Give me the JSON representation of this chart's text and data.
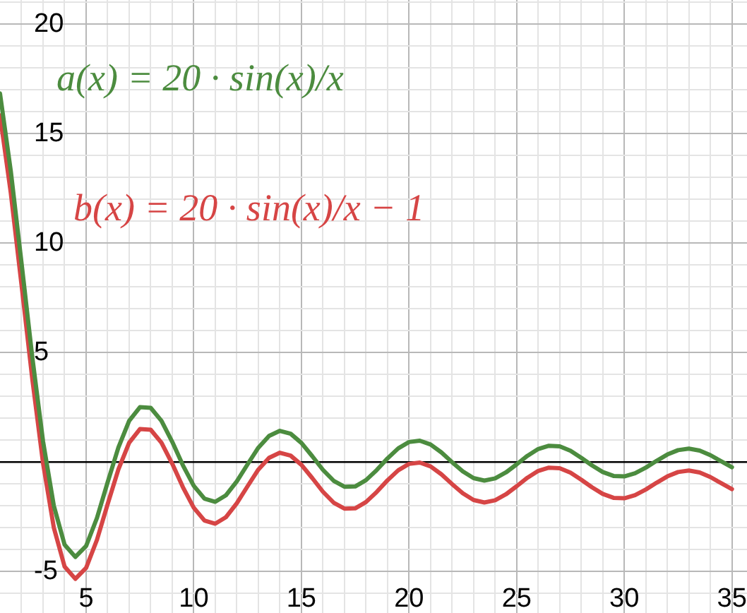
{
  "chart_data": {
    "type": "line",
    "x": [
      1,
      1.5,
      2,
      2.5,
      3,
      3.5,
      4,
      4.5,
      5,
      5.5,
      6,
      6.5,
      7,
      7.5,
      8,
      8.5,
      9,
      9.5,
      10,
      10.5,
      11,
      11.5,
      12,
      12.5,
      13,
      13.5,
      14,
      14.5,
      15,
      15.5,
      16,
      16.5,
      17,
      17.5,
      18,
      18.5,
      19,
      19.5,
      20,
      20.5,
      21,
      21.5,
      22,
      22.5,
      23,
      23.5,
      24,
      24.5,
      25,
      25.5,
      26,
      26.5,
      27,
      27.5,
      28,
      28.5,
      29,
      29.5,
      30,
      30.5,
      31,
      31.5,
      32,
      32.5,
      33,
      33.5,
      34,
      34.5,
      35
    ],
    "series": [
      {
        "color": "#4c8c3f",
        "values": [
          16.83,
          13.3,
          9.09,
          4.79,
          0.94,
          -2.0,
          -3.78,
          -4.34,
          -3.84,
          -2.57,
          -0.93,
          0.66,
          1.88,
          2.5,
          2.47,
          1.88,
          0.92,
          -0.16,
          -1.09,
          -1.68,
          -1.82,
          -1.52,
          -0.89,
          -0.11,
          0.65,
          1.19,
          1.42,
          1.29,
          0.87,
          0.27,
          -0.36,
          -0.86,
          -1.13,
          -1.12,
          -0.83,
          -0.37,
          0.16,
          0.62,
          0.91,
          0.97,
          0.8,
          0.44,
          -0.01,
          -0.43,
          -0.74,
          -0.85,
          -0.75,
          -0.48,
          -0.11,
          0.28,
          0.59,
          0.74,
          0.71,
          0.51,
          0.19,
          -0.16,
          -0.46,
          -0.64,
          -0.66,
          -0.52,
          -0.26,
          0.05,
          0.34,
          0.54,
          0.61,
          0.52,
          0.31,
          0.03,
          -0.24
        ]
      },
      {
        "color": "#d64545",
        "values": [
          15.83,
          12.3,
          8.09,
          3.79,
          -0.06,
          -3.0,
          -4.78,
          -5.34,
          -4.84,
          -3.57,
          -1.93,
          -0.34,
          0.88,
          1.5,
          1.47,
          0.88,
          -0.08,
          -1.16,
          -2.09,
          -2.68,
          -2.82,
          -2.52,
          -1.89,
          -1.11,
          -0.35,
          0.19,
          0.42,
          0.29,
          -0.13,
          -0.73,
          -1.36,
          -1.86,
          -2.13,
          -2.12,
          -1.83,
          -1.37,
          -0.84,
          -0.38,
          -0.09,
          -0.03,
          -0.2,
          -0.56,
          -1.01,
          -1.43,
          -1.74,
          -1.85,
          -1.75,
          -1.48,
          -1.11,
          -0.72,
          -0.41,
          -0.26,
          -0.29,
          -0.49,
          -0.81,
          -1.16,
          -1.46,
          -1.64,
          -1.66,
          -1.52,
          -1.26,
          -0.95,
          -0.66,
          -0.46,
          -0.39,
          -0.48,
          -0.69,
          -0.97,
          -1.24
        ]
      }
    ],
    "xlim": [
      1,
      35.7
    ],
    "ylim": [
      -6.9,
      21.1
    ],
    "xticks": [
      {
        "value": 2,
        "label": null
      },
      {
        "value": 3,
        "label": null
      },
      {
        "value": 4,
        "label": null
      },
      5,
      {
        "value": 6,
        "label": null
      },
      {
        "value": 7,
        "label": null
      },
      {
        "value": 8,
        "label": null
      },
      {
        "value": 9,
        "label": null
      },
      10,
      {
        "value": 11,
        "label": null
      },
      {
        "value": 12,
        "label": null
      },
      {
        "value": 13,
        "label": null
      },
      {
        "value": 14,
        "label": null
      },
      15,
      {
        "value": 16,
        "label": null
      },
      {
        "value": 17,
        "label": null
      },
      {
        "value": 18,
        "label": null
      },
      {
        "value": 19,
        "label": null
      },
      20,
      {
        "value": 21,
        "label": null
      },
      {
        "value": 22,
        "label": null
      },
      {
        "value": 23,
        "label": null
      },
      {
        "value": 24,
        "label": null
      },
      25,
      {
        "value": 26,
        "label": null
      },
      {
        "value": 27,
        "label": null
      },
      {
        "value": 28,
        "label": null
      },
      {
        "value": 29,
        "label": null
      },
      30,
      {
        "value": 31,
        "label": null
      },
      {
        "value": 32,
        "label": null
      },
      {
        "value": 33,
        "label": null
      },
      {
        "value": 34,
        "label": null
      },
      35
    ],
    "yticks": [
      {
        "value": -6,
        "label": null
      },
      -5,
      {
        "value": -4,
        "label": null
      },
      {
        "value": -3,
        "label": null
      },
      {
        "value": -2,
        "label": null
      },
      {
        "value": -1,
        "label": null
      },
      {
        "value": 0,
        "label": null
      },
      {
        "value": 1,
        "label": null
      },
      {
        "value": 2,
        "label": null
      },
      {
        "value": 3,
        "label": null
      },
      {
        "value": 4,
        "label": null
      },
      5,
      {
        "value": 6,
        "label": null
      },
      {
        "value": 7,
        "label": null
      },
      {
        "value": 8,
        "label": null
      },
      {
        "value": 9,
        "label": null
      },
      10,
      {
        "value": 11,
        "label": null
      },
      {
        "value": 12,
        "label": null
      },
      {
        "value": 13,
        "label": null
      },
      {
        "value": 14,
        "label": null
      },
      15,
      {
        "value": 16,
        "label": null
      },
      {
        "value": 17,
        "label": null
      },
      {
        "value": 18,
        "label": null
      },
      {
        "value": 19,
        "label": null
      },
      20,
      {
        "value": 21,
        "label": null
      }
    ],
    "annotations": [
      "a(x) = 20 · sin(x)/x",
      "b(x) = 20 · sin(x)/x − 1"
    ],
    "grid": true,
    "legend": false,
    "marker": "none",
    "line_style": "solid"
  }
}
